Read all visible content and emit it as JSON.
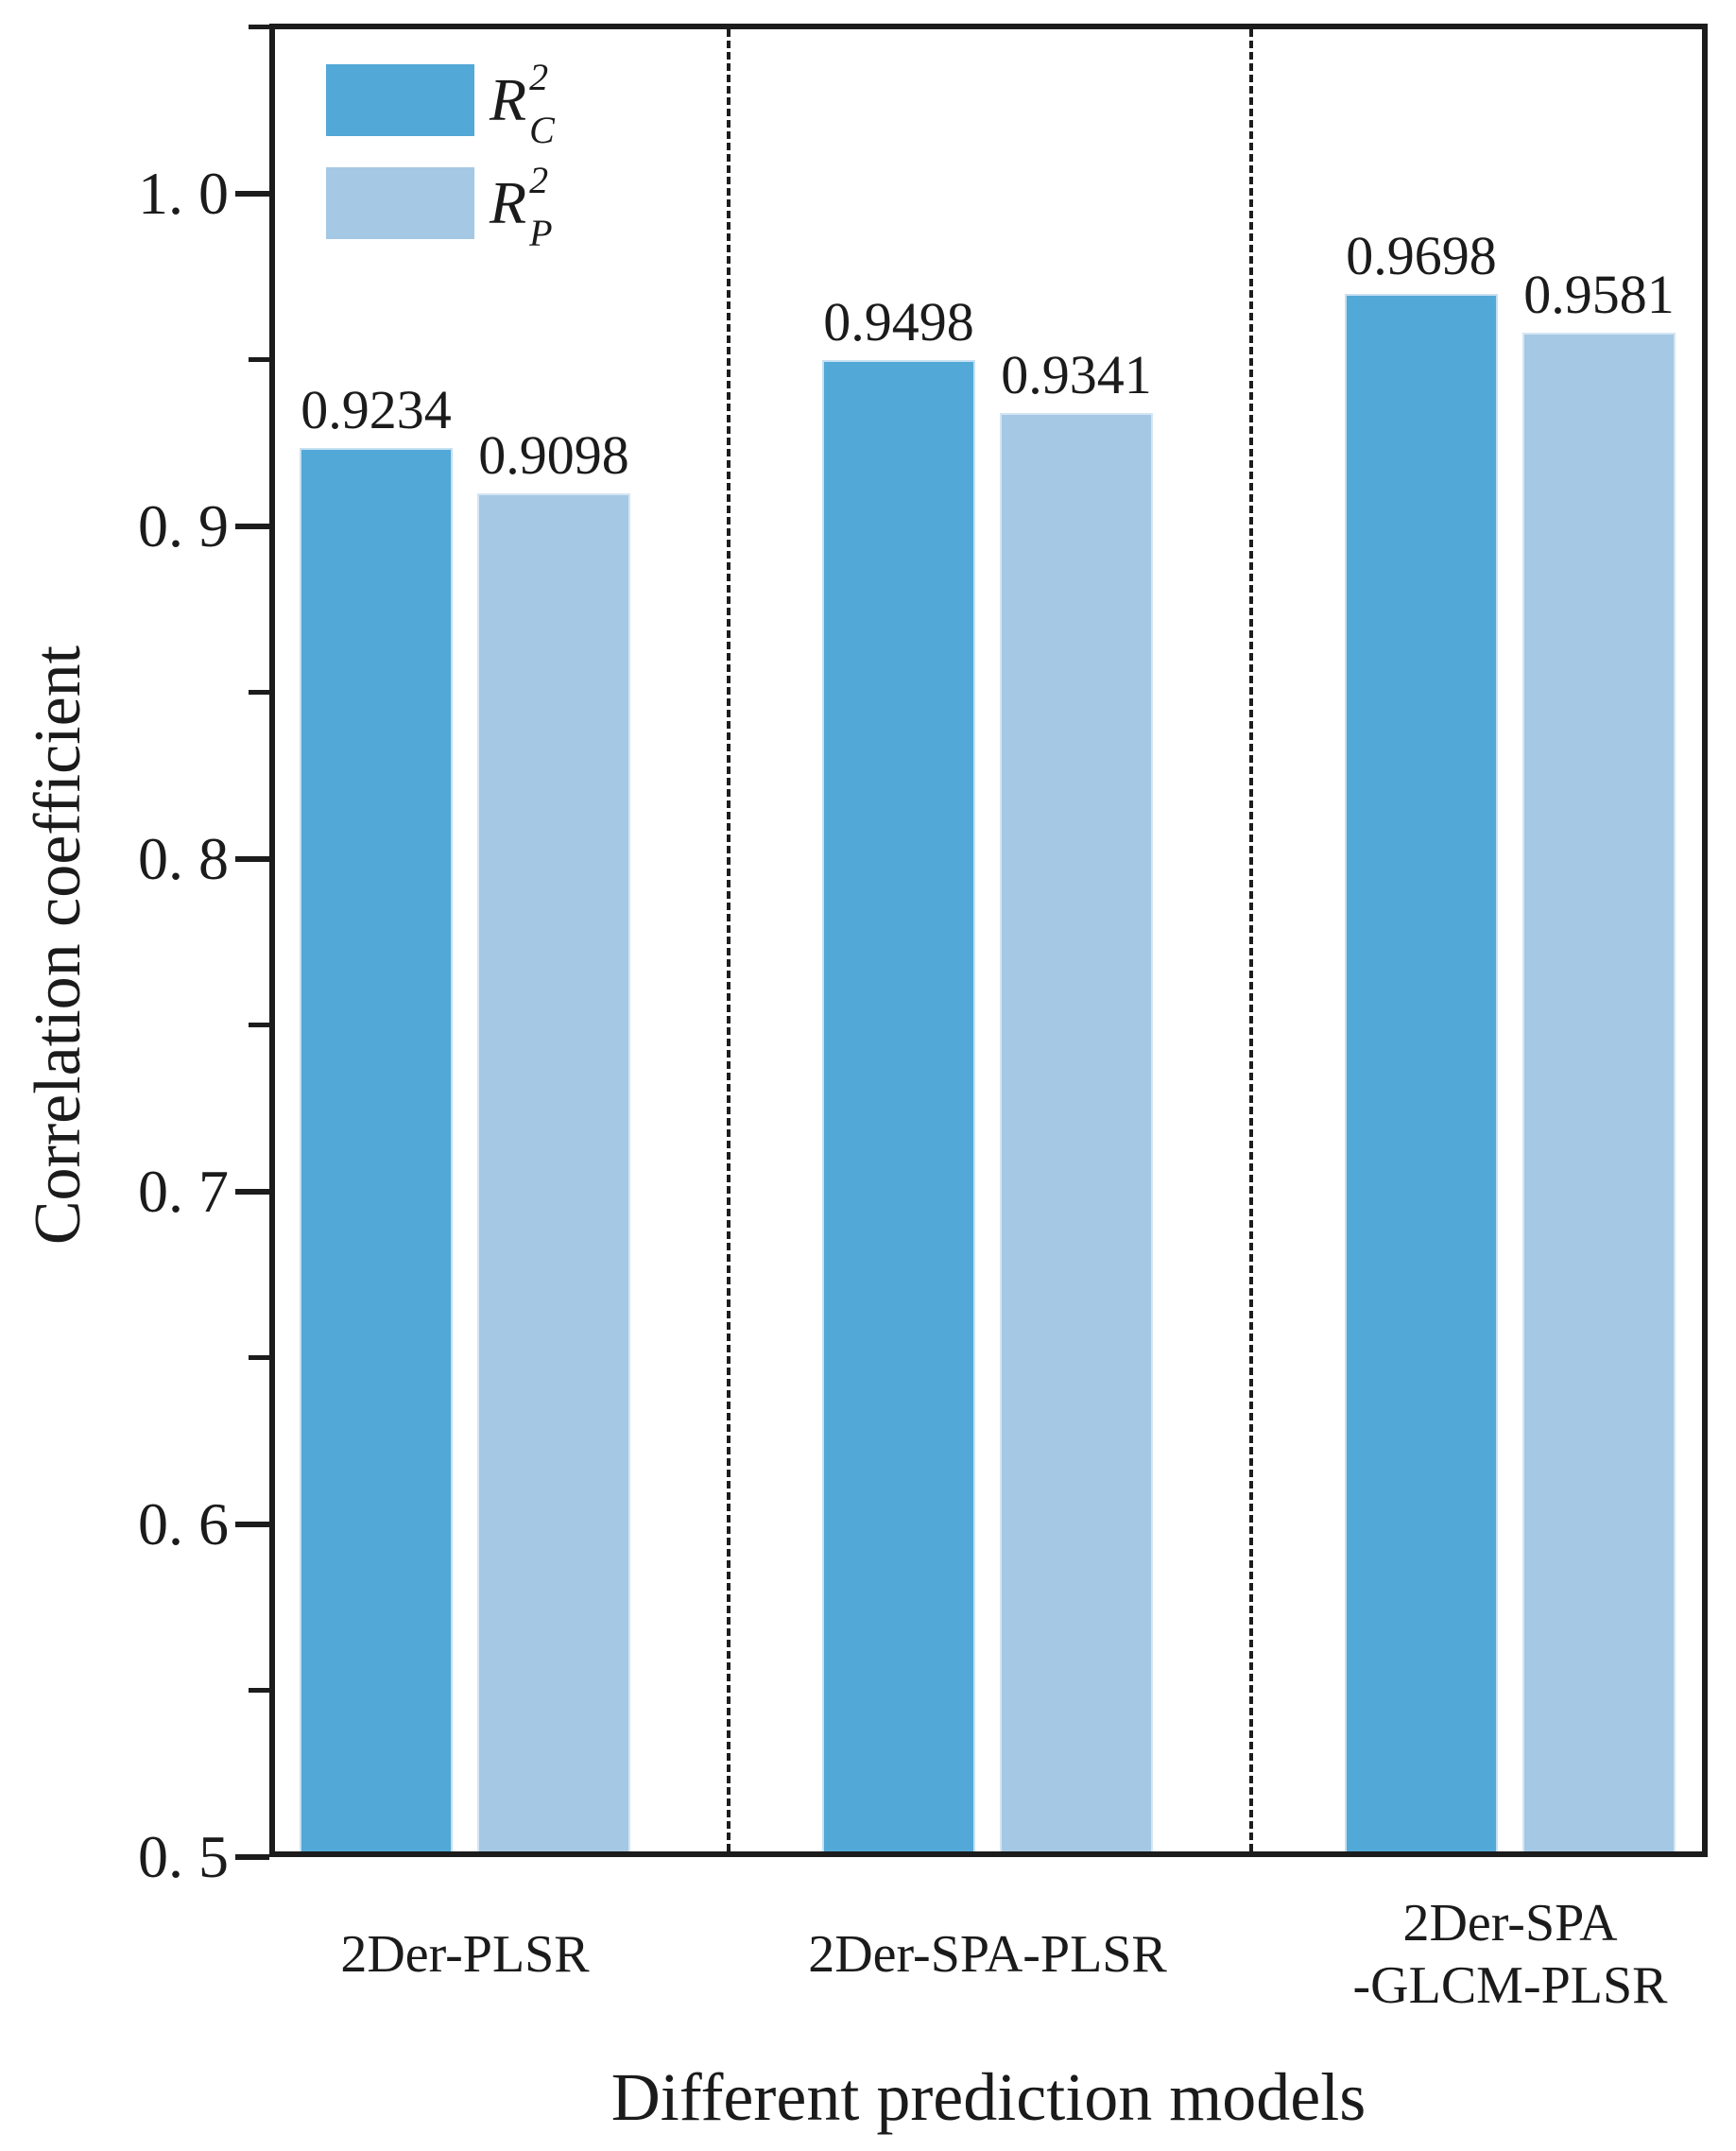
{
  "chart_data": {
    "type": "bar",
    "title": "",
    "xlabel": "Different prediction models",
    "ylabel": "Correlation coefficient",
    "ylim": [
      0.5,
      1.05
    ],
    "grid": false,
    "legend_position": "top-left-inside",
    "group_separators": "vertical dashed lines between category groups",
    "categories": [
      "2Der-PLSR",
      "2Der-SPA-PLSR",
      "2Der-SPA\n-GLCM-PLSR"
    ],
    "series": [
      {
        "name": "R2_C",
        "legend_base": "R",
        "legend_sup": "2",
        "legend_sub": "C",
        "color": "#52A8D6",
        "values": [
          0.9234,
          0.9498,
          0.9698
        ],
        "value_labels": [
          "0.9234",
          "0.9498",
          "0.9698"
        ]
      },
      {
        "name": "R2_P",
        "legend_base": "R",
        "legend_sup": "2",
        "legend_sub": "P",
        "color": "#A5C8E4",
        "values": [
          0.9098,
          0.9341,
          0.9581
        ],
        "value_labels": [
          "0.9098",
          "0.9341",
          "0.9581"
        ]
      }
    ],
    "y_major_ticks": [
      {
        "value": 1.0,
        "label": "1. 0"
      },
      {
        "value": 0.9,
        "label": "0. 9"
      },
      {
        "value": 0.8,
        "label": "0. 8"
      },
      {
        "value": 0.7,
        "label": "0. 7"
      },
      {
        "value": 0.6,
        "label": "0. 6"
      },
      {
        "value": 0.5,
        "label": "0. 5"
      }
    ],
    "y_minor_ticks": [
      1.05,
      0.95,
      0.85,
      0.75,
      0.65,
      0.55
    ]
  },
  "colors": {
    "bar_dark": "#52A8D6",
    "bar_light": "#A5C8E4",
    "bar_edge": "#DCEAF6",
    "axis": "#1C1C1C",
    "text": "#1B1B1B",
    "background": "#FFFFFF"
  }
}
